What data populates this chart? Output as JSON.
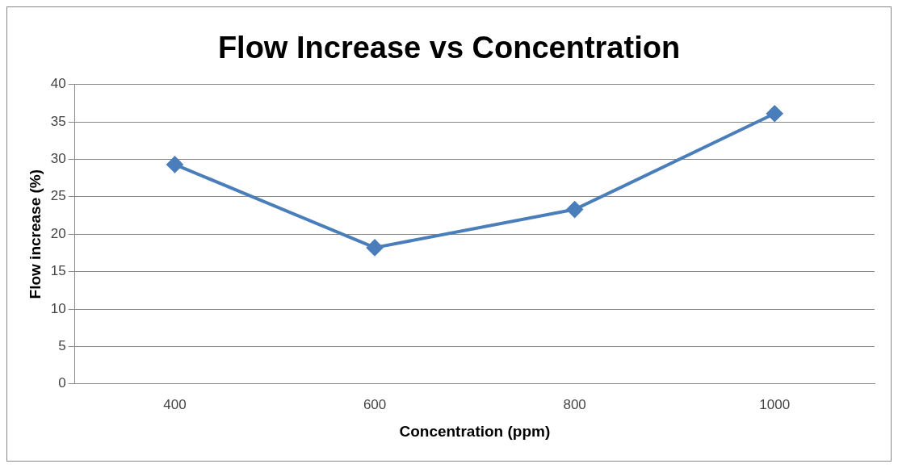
{
  "chart_data": {
    "type": "line",
    "title": "Flow Increase vs Concentration",
    "xlabel": "Concentration (ppm)",
    "ylabel": "Flow increase (%)",
    "categories": [
      "400",
      "600",
      "800",
      "1000"
    ],
    "series": [
      {
        "color": "#4a7ebb",
        "values": [
          29.3,
          18.2,
          23.3,
          36.1
        ]
      }
    ],
    "ylim": [
      0,
      40
    ],
    "yticks": [
      0,
      5,
      10,
      15,
      20,
      25,
      30,
      35,
      40
    ],
    "grid": "y",
    "legend": false,
    "marker": "diamond",
    "line_style": "solid"
  }
}
